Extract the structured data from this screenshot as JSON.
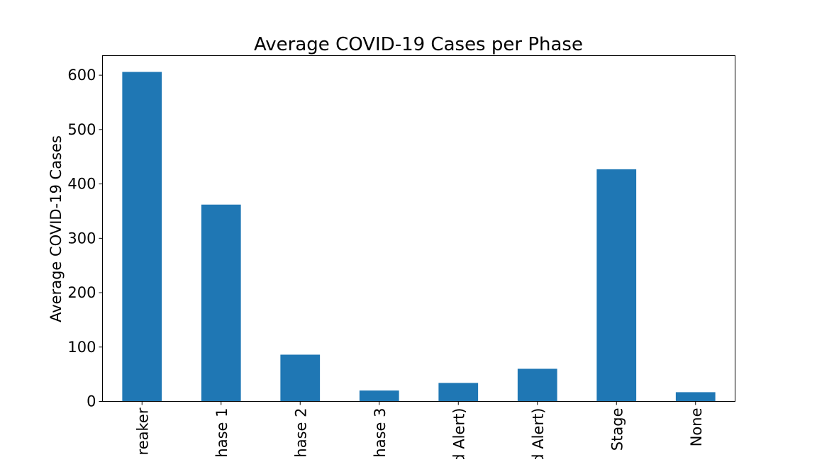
{
  "chart_data": {
    "type": "bar",
    "title": "Average COVID-19 Cases per Phase",
    "xlabel": "",
    "ylabel": "Average COVID-19 Cases",
    "categories": [
      "reaker",
      "hase 1",
      "hase 2",
      "hase 3",
      "d Alert)",
      "d Alert)",
      "Stage",
      "None"
    ],
    "values": [
      606,
      362,
      86,
      20,
      34,
      60,
      427,
      17
    ],
    "ylim": [
      0,
      636
    ],
    "yticks": [
      0,
      100,
      200,
      300,
      400,
      500,
      600
    ],
    "grid": false,
    "legend": "none",
    "bar_color": "#1f77b4"
  }
}
